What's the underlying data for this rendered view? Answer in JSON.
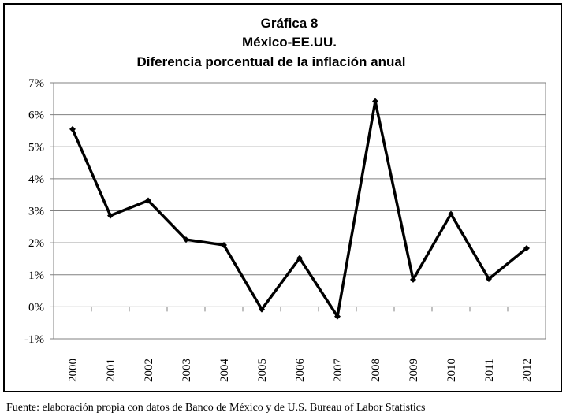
{
  "chart_data": {
    "type": "line",
    "title_lines": [
      "Gráfica 8",
      "México-EE.UU.",
      "Diferencia porcentual de la inflación anual"
    ],
    "categories": [
      "2000",
      "2001",
      "2002",
      "2003",
      "2004",
      "2005",
      "2006",
      "2007",
      "2008",
      "2009",
      "2010",
      "2011",
      "2012"
    ],
    "series": [
      {
        "name": "Diferencia porcentual",
        "values": [
          5.55,
          2.85,
          3.32,
          2.1,
          1.93,
          -0.08,
          1.52,
          -0.3,
          6.42,
          0.85,
          2.9,
          0.87,
          1.83
        ]
      }
    ],
    "y_ticks": [
      -1,
      0,
      1,
      2,
      3,
      4,
      5,
      6,
      7
    ],
    "y_tick_labels": [
      "-1%",
      "0%",
      "1%",
      "2%",
      "3%",
      "4%",
      "5%",
      "6%",
      "7%"
    ],
    "ylim": [
      -1,
      7
    ],
    "xlabel": "",
    "ylabel": "",
    "gridlines": true,
    "line_color": "#000000"
  },
  "source_note": "Fuente: elaboración propia con datos de Banco de México y de U.S. Bureau of Labor Statistics"
}
